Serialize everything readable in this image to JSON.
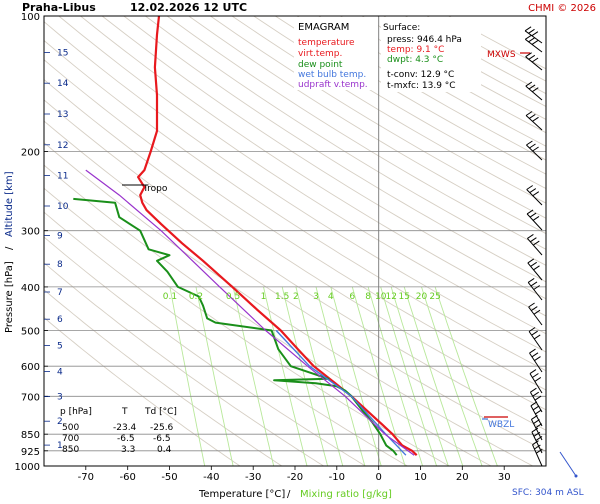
{
  "header": {
    "station": "Praha-Libus",
    "datetime": "12.02.2026 12 UTC",
    "credit": "CHMI © 2026"
  },
  "legend": {
    "title": "EMAGRAM",
    "entries": [
      {
        "label": "temperature",
        "color": "#e8191e"
      },
      {
        "label": "virt.temp.",
        "color": "#e8191e"
      },
      {
        "label": "dew point",
        "color": "#1a8f1a"
      },
      {
        "label": "wet bulb temp.",
        "color": "#4477dd"
      },
      {
        "label": "udpraft v.temp.",
        "color": "#9933cc"
      }
    ]
  },
  "surface": {
    "title": "Surface:",
    "press": "press: 946.4 hPa",
    "temp": "temp: 9.1 °C",
    "dwpt": "dwpt: 4.3 °C",
    "tconv": "t-conv: 12.9 °C",
    "tmxfc": "t-mxfc: 13.9 °C"
  },
  "table": {
    "headers": [
      "p [hPa]",
      "T",
      "Td [°C]"
    ],
    "rows": [
      [
        "500",
        "-23.4",
        "-25.6"
      ],
      [
        "700",
        "-6.5",
        "-6.5"
      ],
      [
        "850",
        "3.3",
        "0.4"
      ]
    ]
  },
  "labels": {
    "tropo": "Tropo",
    "mxws": "MXWS",
    "wbzl": "WBZL",
    "sfc": "SFC: 304 m ASL",
    "xlabel_temp": "Temperature [°C]",
    "xlabel_sep": "/",
    "xlabel_mix": "Mixing ratio [g/kg]",
    "ylabel_press": "Pressure [hPa]",
    "ylabel_sep": "/",
    "ylabel_alt": "Altitude [km]"
  },
  "mixing_labels": [
    "0.1",
    "0.2",
    "0.5",
    "1",
    "1.5",
    "2",
    "3",
    "4",
    "6",
    "8",
    "10",
    "12",
    "15",
    "20",
    "25"
  ],
  "chart_data": {
    "type": "line",
    "x_axis": {
      "label": "Temperature [°C]",
      "range": [
        -80,
        40
      ],
      "ticks": [
        -70,
        -60,
        -50,
        -40,
        -30,
        -20,
        -10,
        0,
        10,
        20,
        30
      ]
    },
    "y_axis": {
      "label": "Pressure [hPa]",
      "scale": "log",
      "range": [
        1000,
        100
      ],
      "ticks": [
        100,
        200,
        300,
        400,
        500,
        600,
        700,
        850,
        925,
        1000
      ]
    },
    "altitude_km_ticks": [
      1,
      2,
      3,
      4,
      5,
      6,
      7,
      8,
      9,
      10,
      11,
      12,
      13,
      14,
      15
    ],
    "series": [
      {
        "name": "temperature",
        "color": "#e8191e",
        "points": [
          [
            946,
            9.1
          ],
          [
            925,
            8.0
          ],
          [
            900,
            5.6
          ],
          [
            850,
            3.3
          ],
          [
            800,
            0.3
          ],
          [
            750,
            -3.0
          ],
          [
            700,
            -6.5
          ],
          [
            650,
            -10.8
          ],
          [
            600,
            -15.5
          ],
          [
            550,
            -19.3
          ],
          [
            500,
            -23.4
          ],
          [
            450,
            -29.0
          ],
          [
            400,
            -35.0
          ],
          [
            350,
            -42.0
          ],
          [
            320,
            -47.0
          ],
          [
            290,
            -52.0
          ],
          [
            270,
            -55.5
          ],
          [
            260,
            -56.5
          ],
          [
            250,
            -57.0
          ],
          [
            240,
            -56.0
          ],
          [
            228,
            -57.5
          ],
          [
            220,
            -56.0
          ],
          [
            200,
            -54.5
          ],
          [
            180,
            -53.0
          ],
          [
            150,
            -53.0
          ],
          [
            130,
            -53.5
          ],
          [
            110,
            -53.0
          ],
          [
            100,
            -52.5
          ]
        ]
      },
      {
        "name": "dew point",
        "color": "#1a8f1a",
        "points": [
          [
            946,
            4.3
          ],
          [
            925,
            3.5
          ],
          [
            900,
            1.8
          ],
          [
            850,
            0.4
          ],
          [
            800,
            -1.5
          ],
          [
            750,
            -4.0
          ],
          [
            700,
            -6.5
          ],
          [
            680,
            -8.0
          ],
          [
            665,
            -10.0
          ],
          [
            655,
            -15.0
          ],
          [
            645,
            -25.0
          ],
          [
            640,
            -12.0
          ],
          [
            600,
            -21.0
          ],
          [
            550,
            -24.0
          ],
          [
            500,
            -25.6
          ],
          [
            480,
            -39.0
          ],
          [
            470,
            -41.0
          ],
          [
            440,
            -42.0
          ],
          [
            420,
            -43.0
          ],
          [
            400,
            -48.0
          ],
          [
            370,
            -50.5
          ],
          [
            350,
            -53.0
          ],
          [
            340,
            -50.0
          ],
          [
            330,
            -55.0
          ],
          [
            300,
            -57.0
          ],
          [
            280,
            -62.0
          ],
          [
            260,
            -63.0
          ],
          [
            255,
            -73.0
          ]
        ]
      },
      {
        "name": "wet bulb temp.",
        "color": "#4477dd",
        "points": [
          [
            946,
            6.5
          ],
          [
            850,
            1.7
          ],
          [
            700,
            -6.5
          ],
          [
            600,
            -16.5
          ],
          [
            500,
            -24.5
          ]
        ]
      },
      {
        "name": "udpraft v.temp.",
        "color": "#9933cc",
        "points": [
          [
            946,
            8.5
          ],
          [
            850,
            1.5
          ],
          [
            700,
            -8.0
          ],
          [
            600,
            -17.0
          ],
          [
            500,
            -27.0
          ],
          [
            400,
            -38.0
          ],
          [
            300,
            -52.0
          ],
          [
            250,
            -62.0
          ],
          [
            220,
            -70.0
          ]
        ]
      }
    ],
    "annotations": [
      "Tropo",
      "MXWS",
      "WBZL",
      "SFC: 304 m ASL"
    ]
  }
}
